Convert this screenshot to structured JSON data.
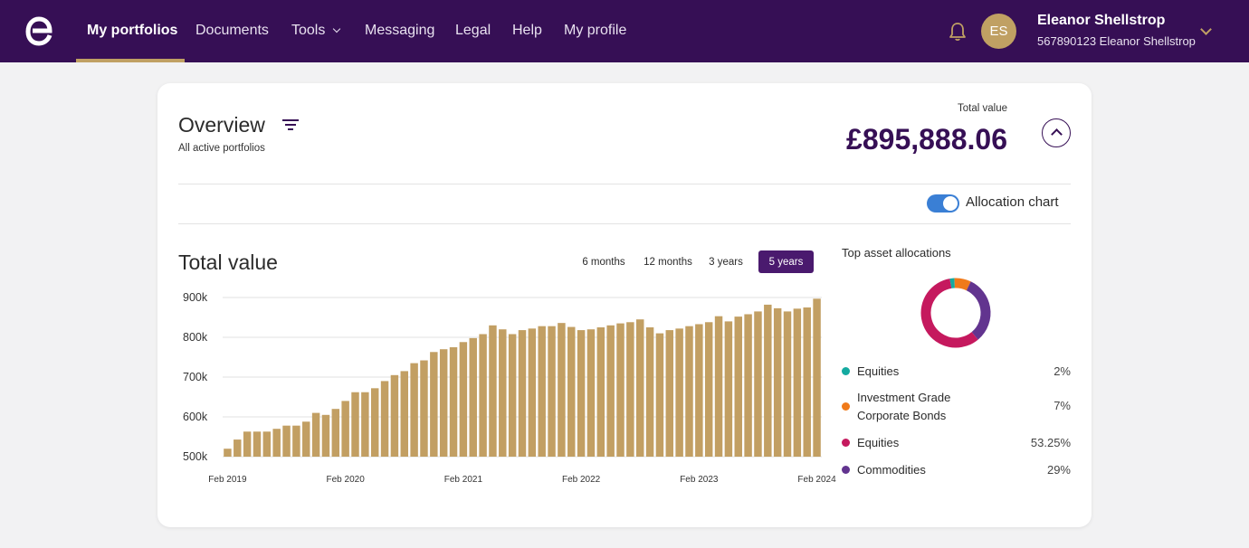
{
  "nav": {
    "items": [
      {
        "label": "My portfolios"
      },
      {
        "label": "Documents"
      },
      {
        "label": "Tools"
      },
      {
        "label": "Messaging"
      },
      {
        "label": "Legal"
      },
      {
        "label": "Help"
      },
      {
        "label": "My profile"
      }
    ],
    "user": {
      "initials": "ES",
      "name": "Eleanor Shellstrop",
      "account": "567890123 Eleanor Shellstrop"
    }
  },
  "overview": {
    "title": "Overview",
    "subtitle": "All active portfolios",
    "total_label": "Total value",
    "total_value": "£895,888.06",
    "toggle_label": "Allocation chart"
  },
  "chart_section": {
    "title": "Total value",
    "ranges": [
      "6 months",
      "12 months",
      "3 years",
      "5 years"
    ],
    "active_range": "5 years"
  },
  "chart_data": {
    "type": "bar",
    "title": "Total value",
    "x_tick_labels": [
      "Feb 2019",
      "Feb 2020",
      "Feb 2021",
      "Feb 2022",
      "Feb 2023",
      "Feb 2024"
    ],
    "y_tick_labels": [
      "900k",
      "800k",
      "700k",
      "600k",
      "500k"
    ],
    "ylim": [
      500000,
      900000
    ],
    "bar_color": "#c29f63",
    "values": [
      520000,
      543000,
      563000,
      563000,
      563000,
      570000,
      578000,
      578000,
      588000,
      610000,
      605000,
      620000,
      640000,
      662000,
      662000,
      672000,
      690000,
      705000,
      715000,
      735000,
      742000,
      763000,
      770000,
      775000,
      788000,
      798000,
      808000,
      830000,
      820000,
      808000,
      818000,
      822000,
      828000,
      828000,
      836000,
      826000,
      818000,
      820000,
      825000,
      830000,
      835000,
      838000,
      845000,
      825000,
      810000,
      818000,
      822000,
      828000,
      833000,
      838000,
      853000,
      840000,
      852000,
      858000,
      865000,
      882000,
      873000,
      865000,
      872000,
      875000,
      897000
    ],
    "grid": true
  },
  "allocations": {
    "title": "Top asset allocations",
    "items": [
      {
        "name": "Equities",
        "pct": "2%",
        "color": "#14aaa0"
      },
      {
        "name": "Investment Grade Corporate Bonds",
        "pct": "7%",
        "color": "#f07a1a"
      },
      {
        "name": "Equities",
        "pct": "53.25%",
        "color": "#c5195e"
      },
      {
        "name": "Commodities",
        "pct": "29%",
        "color": "#62348f"
      }
    ]
  }
}
